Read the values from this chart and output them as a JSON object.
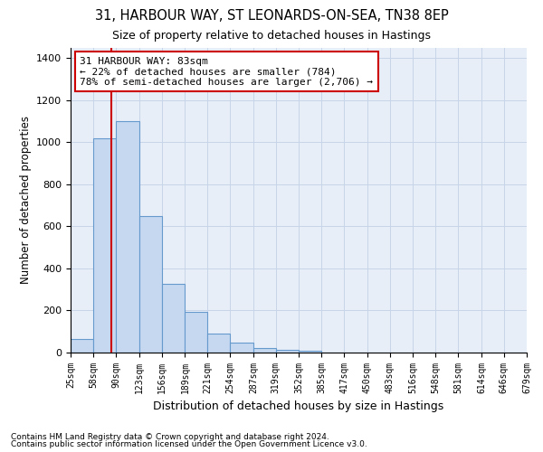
{
  "title1": "31, HARBOUR WAY, ST LEONARDS-ON-SEA, TN38 8EP",
  "title2": "Size of property relative to detached houses in Hastings",
  "xlabel": "Distribution of detached houses by size in Hastings",
  "ylabel": "Number of detached properties",
  "bin_edges": [
    25,
    58,
    90,
    123,
    156,
    189,
    221,
    254,
    287,
    319,
    352,
    385,
    417,
    450,
    483,
    516,
    548,
    581,
    614,
    646,
    679
  ],
  "bar_heights": [
    65,
    1020,
    1100,
    650,
    325,
    195,
    90,
    48,
    20,
    15,
    10,
    0,
    0,
    0,
    0,
    0,
    0,
    0,
    0,
    0
  ],
  "bar_color": "#c5d8f0",
  "bar_edge_color": "#6699cc",
  "grid_color": "#c8d4e8",
  "bg_color": "#e8eef8",
  "property_line_x": 83,
  "property_line_color": "#cc0000",
  "annotation_text": "31 HARBOUR WAY: 83sqm\n← 22% of detached houses are smaller (784)\n78% of semi-detached houses are larger (2,706) →",
  "annotation_box_color": "#cc0000",
  "ylim": [
    0,
    1450
  ],
  "yticks": [
    0,
    200,
    400,
    600,
    800,
    1000,
    1200,
    1400
  ],
  "footnote1": "Contains HM Land Registry data © Crown copyright and database right 2024.",
  "footnote2": "Contains public sector information licensed under the Open Government Licence v3.0."
}
